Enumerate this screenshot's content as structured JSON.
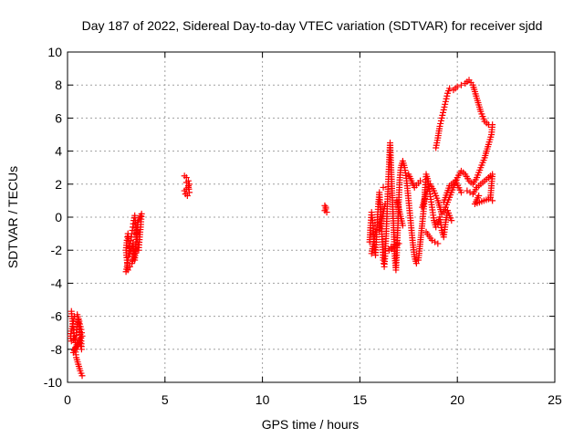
{
  "chart_data": {
    "type": "scatter",
    "title": "Day 187 of 2022, Sidereal Day-to-day VTEC variation (SDTVAR) for receiver sjdd",
    "xlabel": "GPS time / hours",
    "ylabel": "SDTVAR / TECUs",
    "xlim": [
      0,
      25
    ],
    "ylim": [
      -10,
      10
    ],
    "xticks": [
      "0",
      "5",
      "10",
      "15",
      "20",
      "25"
    ],
    "yticks": [
      "-10",
      "-8",
      "-6",
      "-4",
      "-2",
      "0",
      "2",
      "4",
      "6",
      "8",
      "10"
    ],
    "grid": true,
    "marker": "+",
    "color": "#ff0000",
    "series": [
      {
        "points": [
          [
            0.2,
            -5.7
          ],
          [
            0.25,
            -6.3
          ],
          [
            0.3,
            -6.8
          ],
          [
            0.35,
            -7.2
          ],
          [
            0.4,
            -7.6
          ],
          [
            0.45,
            -7.0
          ],
          [
            0.5,
            -6.5
          ],
          [
            0.55,
            -6.2
          ],
          [
            0.6,
            -6.6
          ],
          [
            0.65,
            -7.1
          ],
          [
            0.7,
            -7.5
          ],
          [
            0.72,
            -8.0
          ],
          [
            0.68,
            -7.8
          ],
          [
            0.6,
            -7.4
          ],
          [
            0.5,
            -7.6
          ],
          [
            0.4,
            -8.0
          ],
          [
            0.45,
            -8.5
          ],
          [
            0.55,
            -8.9
          ],
          [
            0.65,
            -9.3
          ],
          [
            0.75,
            -9.6
          ],
          [
            0.3,
            -7.4
          ],
          [
            0.2,
            -7.5
          ],
          [
            0.15,
            -7.2
          ],
          [
            0.35,
            -6.0
          ],
          [
            0.5,
            -5.9
          ],
          [
            0.6,
            -6.3
          ],
          [
            0.7,
            -6.8
          ],
          [
            0.75,
            -7.2
          ],
          [
            0.3,
            -8.2
          ],
          [
            0.4,
            -7.9
          ]
        ]
      },
      {
        "points": [
          [
            3.0,
            -3.3
          ],
          [
            3.05,
            -3.0
          ],
          [
            3.1,
            -2.6
          ],
          [
            3.15,
            -2.2
          ],
          [
            3.2,
            -1.8
          ],
          [
            3.25,
            -1.4
          ],
          [
            3.3,
            -1.0
          ],
          [
            3.35,
            -0.6
          ],
          [
            3.4,
            -0.2
          ],
          [
            3.45,
            0.1
          ],
          [
            3.5,
            -0.5
          ],
          [
            3.55,
            -1.0
          ],
          [
            3.6,
            -1.5
          ],
          [
            3.65,
            -2.0
          ],
          [
            3.7,
            -1.2
          ],
          [
            3.75,
            -0.6
          ],
          [
            3.8,
            0.2
          ],
          [
            3.6,
            -0.3
          ],
          [
            3.5,
            -1.8
          ],
          [
            3.4,
            -2.4
          ],
          [
            3.3,
            -2.8
          ],
          [
            3.2,
            -3.0
          ],
          [
            3.1,
            -3.2
          ],
          [
            3.0,
            -2.0
          ],
          [
            3.05,
            -1.4
          ],
          [
            3.1,
            -1.0
          ],
          [
            3.2,
            -2.2
          ],
          [
            3.35,
            -1.6
          ],
          [
            3.45,
            -2.6
          ],
          [
            3.55,
            -0.8
          ]
        ]
      },
      {
        "points": [
          [
            6.0,
            2.5
          ],
          [
            6.1,
            2.4
          ],
          [
            6.2,
            2.2
          ],
          [
            6.25,
            2.0
          ],
          [
            6.2,
            1.8
          ],
          [
            6.1,
            1.7
          ],
          [
            6.0,
            1.6
          ],
          [
            6.05,
            1.4
          ],
          [
            6.15,
            1.3
          ],
          [
            6.25,
            1.5
          ],
          [
            6.2,
            1.9
          ],
          [
            6.1,
            2.1
          ]
        ]
      },
      {
        "points": [
          [
            13.2,
            0.7
          ],
          [
            13.25,
            0.5
          ],
          [
            13.3,
            0.3
          ],
          [
            13.2,
            0.4
          ],
          [
            13.25,
            0.6
          ]
        ]
      },
      {
        "points": [
          [
            15.5,
            -1.5
          ],
          [
            15.55,
            -0.5
          ],
          [
            15.6,
            0.3
          ],
          [
            15.65,
            -0.2
          ],
          [
            15.7,
            -1.0
          ],
          [
            15.75,
            -1.8
          ],
          [
            15.8,
            -2.3
          ],
          [
            15.85,
            -1.2
          ],
          [
            15.9,
            0.0
          ],
          [
            15.95,
            0.8
          ],
          [
            16.0,
            1.5
          ],
          [
            16.05,
            0.6
          ],
          [
            16.1,
            -0.4
          ],
          [
            16.15,
            -1.5
          ],
          [
            16.2,
            -2.6
          ],
          [
            16.25,
            -3.0
          ],
          [
            16.3,
            -2.2
          ],
          [
            16.35,
            -1.0
          ],
          [
            16.4,
            0.5
          ],
          [
            16.45,
            2.0
          ],
          [
            16.5,
            3.2
          ],
          [
            16.55,
            4.5
          ],
          [
            16.6,
            3.0
          ],
          [
            16.65,
            1.6
          ],
          [
            16.7,
            0.2
          ],
          [
            16.75,
            -1.2
          ],
          [
            16.8,
            -2.5
          ],
          [
            16.85,
            -3.2
          ],
          [
            16.9,
            -2.0
          ],
          [
            16.95,
            -0.5
          ],
          [
            17.0,
            1.2
          ],
          [
            17.05,
            2.4
          ],
          [
            17.1,
            3.0
          ],
          [
            17.2,
            3.4
          ],
          [
            17.3,
            3.0
          ],
          [
            17.4,
            2.2
          ],
          [
            17.5,
            1.0
          ],
          [
            17.6,
            -0.2
          ],
          [
            17.7,
            -1.4
          ],
          [
            17.8,
            -2.4
          ],
          [
            17.9,
            -2.8
          ],
          [
            18.0,
            -2.6
          ],
          [
            18.1,
            -1.5
          ],
          [
            18.2,
            -0.4
          ],
          [
            18.3,
            0.8
          ],
          [
            18.35,
            1.8
          ],
          [
            18.4,
            2.6
          ],
          [
            18.5,
            2.2
          ],
          [
            18.6,
            1.4
          ],
          [
            18.7,
            0.6
          ],
          [
            18.8,
            -0.2
          ],
          [
            18.9,
            -0.6
          ],
          [
            19.0,
            -0.4
          ],
          [
            19.1,
            0.0
          ],
          [
            19.2,
            -0.8
          ],
          [
            19.3,
            -1.2
          ],
          [
            19.4,
            -0.3
          ],
          [
            19.5,
            0.4
          ],
          [
            19.6,
            0.1
          ],
          [
            19.7,
            -0.2
          ],
          [
            18.9,
            4.2
          ],
          [
            19.0,
            4.8
          ],
          [
            19.1,
            5.5
          ],
          [
            19.2,
            6.0
          ],
          [
            19.3,
            6.5
          ],
          [
            19.4,
            7.0
          ],
          [
            19.5,
            7.5
          ],
          [
            19.6,
            7.8
          ],
          [
            19.8,
            7.7
          ],
          [
            20.0,
            7.9
          ],
          [
            20.2,
            8.0
          ],
          [
            20.4,
            8.1
          ],
          [
            20.6,
            8.3
          ],
          [
            20.8,
            8.0
          ],
          [
            21.0,
            7.2
          ],
          [
            21.2,
            6.4
          ],
          [
            21.4,
            5.8
          ],
          [
            21.6,
            5.6
          ],
          [
            21.8,
            5.6
          ],
          [
            21.75,
            5.0
          ],
          [
            21.6,
            4.4
          ],
          [
            21.4,
            3.6
          ],
          [
            21.2,
            3.0
          ],
          [
            21.0,
            2.4
          ],
          [
            20.8,
            2.0
          ],
          [
            20.6,
            2.2
          ],
          [
            20.4,
            2.6
          ],
          [
            20.2,
            2.8
          ],
          [
            20.0,
            2.4
          ],
          [
            19.8,
            1.8
          ],
          [
            19.6,
            1.2
          ],
          [
            19.4,
            0.6
          ],
          [
            19.2,
            0.2
          ],
          [
            19.0,
            1.0
          ],
          [
            18.8,
            1.6
          ],
          [
            18.6,
            2.0
          ],
          [
            18.4,
            1.4
          ],
          [
            18.2,
            0.6
          ],
          [
            20.5,
            1.6
          ],
          [
            20.8,
            1.4
          ],
          [
            21.0,
            1.8
          ],
          [
            21.2,
            2.0
          ],
          [
            21.4,
            2.2
          ],
          [
            21.6,
            2.4
          ],
          [
            21.8,
            2.6
          ],
          [
            21.7,
            1.2
          ],
          [
            21.8,
            1.0
          ],
          [
            21.6,
            1.1
          ],
          [
            20.9,
            0.8
          ],
          [
            21.1,
            1.3
          ],
          [
            16.0,
            -0.8
          ],
          [
            16.3,
            0.8
          ],
          [
            16.6,
            -1.8
          ],
          [
            16.9,
            1.0
          ],
          [
            17.2,
            -0.5
          ],
          [
            17.5,
            2.6
          ],
          [
            17.8,
            1.8
          ],
          [
            18.1,
            2.2
          ],
          [
            18.4,
            -0.9
          ],
          [
            18.7,
            -1.4
          ],
          [
            19.0,
            -1.6
          ],
          [
            19.3,
            0.9
          ],
          [
            19.6,
            1.9
          ],
          [
            19.9,
            2.2
          ],
          [
            20.2,
            1.5
          ],
          [
            15.6,
            -2.2
          ],
          [
            15.8,
            -0.9
          ],
          [
            16.2,
            1.8
          ],
          [
            16.5,
            -2.0
          ],
          [
            17.0,
            -1.6
          ]
        ]
      }
    ]
  }
}
